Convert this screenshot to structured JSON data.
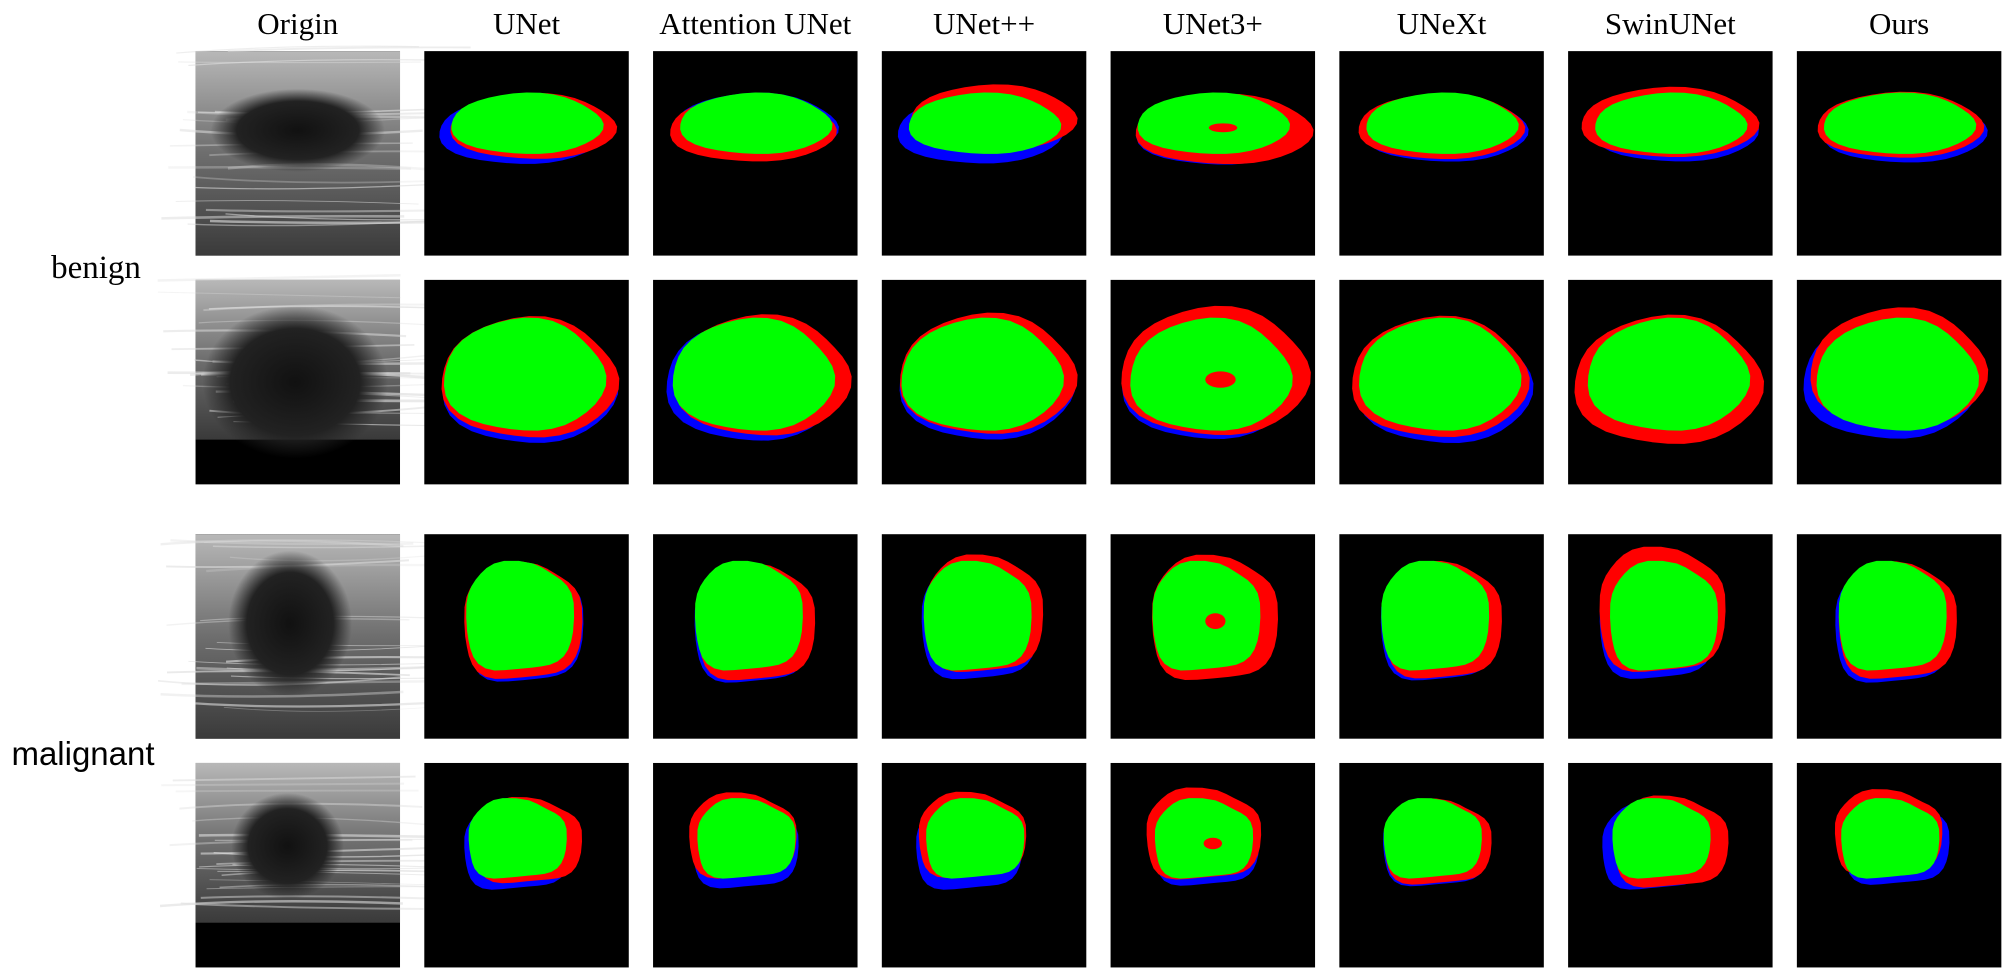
{
  "columns": [
    "Origin",
    "UNet",
    "Attention UNet",
    "UNet++",
    "UNet3+",
    "UNeXt",
    "SwinUNet",
    "Ours"
  ],
  "groups": [
    {
      "label": "benign"
    },
    {
      "label": "malignant"
    }
  ]
}
